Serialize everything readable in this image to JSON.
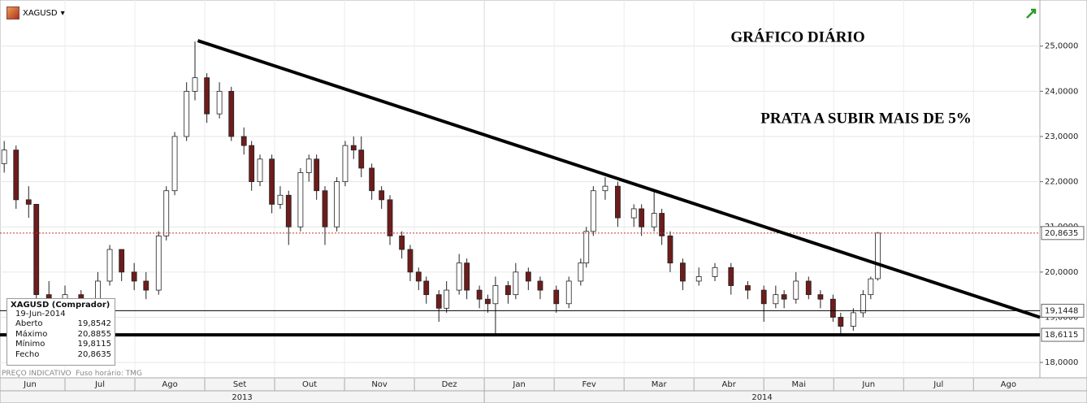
{
  "chart_data": {
    "type": "candlestick",
    "symbol": "XAGUSD",
    "annotations": [
      "GRÁFICO DIÁRIO",
      "PRATA A SUBIR MAIS DE 5%"
    ],
    "footer": [
      "PREÇO INDICATIVO",
      "Fuso horário: TMG"
    ],
    "info": {
      "title": "XAGUSD (Comprador)",
      "date": "19-Jun-2014",
      "rows": [
        [
          "Aberto",
          "19,8542"
        ],
        [
          "Máximo",
          "20,8855"
        ],
        [
          "Mínimo",
          "19,8115"
        ],
        [
          "Fecho",
          "20,8635"
        ]
      ]
    },
    "years": [
      "2013",
      "2014"
    ],
    "xlim": [
      0.07,
      14.95
    ],
    "xticks": [
      {
        "value": 0.5,
        "label": "Jun"
      },
      {
        "value": 1.5,
        "label": "Jul"
      },
      {
        "value": 2.5,
        "label": "Ago"
      },
      {
        "value": 3.5,
        "label": "Set"
      },
      {
        "value": 4.5,
        "label": "Out"
      },
      {
        "value": 5.5,
        "label": "Nov"
      },
      {
        "value": 6.5,
        "label": "Dez"
      },
      {
        "value": 7.5,
        "label": "Jan"
      },
      {
        "value": 8.5,
        "label": "Fev"
      },
      {
        "value": 9.5,
        "label": "Mar"
      },
      {
        "value": 10.5,
        "label": "Abr"
      },
      {
        "value": 11.5,
        "label": "Mai"
      },
      {
        "value": 12.5,
        "label": "Jun"
      },
      {
        "value": 13.5,
        "label": "Jul"
      },
      {
        "value": 14.5,
        "label": "Ago"
      }
    ],
    "ylim": [
      17.66,
      26.02
    ],
    "yticks": [
      {
        "value": 18,
        "label": "18,0000"
      },
      {
        "value": 19,
        "label": "19,0000"
      },
      {
        "value": 20,
        "label": "20,0000"
      },
      {
        "value": 21,
        "label": "21,0000"
      },
      {
        "value": 22,
        "label": "22,0000"
      },
      {
        "value": 23,
        "label": "23,0000"
      },
      {
        "value": 24,
        "label": "24,0000"
      },
      {
        "value": 25,
        "label": "25,0000"
      }
    ],
    "grid": true,
    "up_color": "#ffffff",
    "down_color": "#6e1c1c",
    "x": [
      0.13,
      0.3,
      0.48,
      0.59,
      0.77,
      1.0,
      1.23,
      1.47,
      1.64,
      1.81,
      1.99,
      2.16,
      2.34,
      2.45,
      2.57,
      2.74,
      2.86,
      3.03,
      3.21,
      3.38,
      3.56,
      3.67,
      3.79,
      3.96,
      4.08,
      4.2,
      4.37,
      4.49,
      4.6,
      4.72,
      4.89,
      5.01,
      5.13,
      5.24,
      5.39,
      5.53,
      5.65,
      5.82,
      5.94,
      6.06,
      6.17,
      6.35,
      6.46,
      6.64,
      6.75,
      6.93,
      7.05,
      7.16,
      7.34,
      7.45,
      7.63,
      7.8,
      8.03,
      8.21,
      8.38,
      8.46,
      8.56,
      8.73,
      8.91,
      9.14,
      9.25,
      9.43,
      9.54,
      9.66,
      9.84,
      10.07,
      10.3,
      10.53,
      10.77,
      11.0,
      11.17,
      11.29,
      11.46,
      11.64,
      11.81,
      11.99,
      12.1,
      12.28,
      12.42,
      12.53,
      12.63
    ],
    "open": [
      22.4,
      22.7,
      21.6,
      21.5,
      19.5,
      19.3,
      19.5,
      19.2,
      19.8,
      20.5,
      20.0,
      19.8,
      19.6,
      20.8,
      21.8,
      23.0,
      24.0,
      24.3,
      23.5,
      24.0,
      23.0,
      22.8,
      22.0,
      22.5,
      21.5,
      21.7,
      21.0,
      22.2,
      22.5,
      21.8,
      21.0,
      22.0,
      22.8,
      22.7,
      22.3,
      21.8,
      21.6,
      20.8,
      20.5,
      20.0,
      19.8,
      19.5,
      19.2,
      19.6,
      20.2,
      19.6,
      19.4,
      19.3,
      19.7,
      19.5,
      20.0,
      19.8,
      19.6,
      19.3,
      19.8,
      20.2,
      20.9,
      21.8,
      21.9,
      21.2,
      21.4,
      21.0,
      21.3,
      20.8,
      20.2,
      19.8,
      19.9,
      20.1,
      19.7,
      19.6,
      19.3,
      19.5,
      19.4,
      19.8,
      19.5,
      19.4,
      19.0,
      18.8,
      19.1,
      19.5,
      19.8542
    ],
    "high": [
      22.9,
      22.8,
      21.9,
      21.5,
      19.8,
      19.7,
      19.6,
      20.0,
      20.6,
      20.5,
      20.2,
      20.0,
      20.9,
      21.9,
      23.1,
      24.2,
      25.1,
      24.4,
      24.2,
      24.1,
      23.2,
      22.9,
      22.6,
      22.6,
      21.9,
      21.8,
      22.3,
      22.6,
      22.6,
      21.9,
      22.1,
      22.9,
      23.0,
      23.0,
      22.4,
      21.9,
      21.7,
      20.9,
      20.6,
      20.1,
      19.9,
      19.6,
      19.8,
      20.4,
      20.3,
      19.7,
      19.5,
      19.9,
      19.8,
      20.2,
      20.1,
      19.9,
      19.7,
      19.9,
      20.3,
      21.0,
      21.9,
      22.1,
      22.0,
      21.5,
      21.5,
      21.8,
      21.4,
      20.9,
      20.3,
      20.1,
      20.2,
      20.2,
      19.8,
      19.7,
      19.7,
      19.6,
      20.0,
      19.9,
      19.6,
      19.5,
      19.1,
      19.2,
      19.6,
      19.9,
      20.8855
    ],
    "low": [
      22.2,
      21.4,
      21.2,
      19.3,
      19.0,
      19.0,
      18.9,
      19.1,
      19.7,
      19.8,
      19.6,
      19.4,
      19.5,
      20.7,
      21.7,
      22.9,
      23.8,
      23.3,
      23.4,
      22.9,
      22.6,
      21.8,
      21.9,
      21.3,
      21.4,
      20.6,
      20.9,
      22.0,
      21.6,
      20.6,
      20.9,
      21.9,
      22.5,
      22.1,
      21.6,
      21.4,
      20.6,
      20.3,
      19.8,
      19.6,
      19.3,
      18.9,
      19.1,
      19.5,
      19.4,
      19.2,
      19.1,
      18.6,
      19.3,
      19.4,
      19.6,
      19.4,
      19.1,
      19.2,
      19.7,
      20.1,
      20.8,
      21.6,
      21.0,
      21.0,
      20.8,
      20.9,
      20.6,
      20.0,
      19.6,
      19.7,
      19.8,
      19.5,
      19.4,
      18.9,
      19.2,
      19.2,
      19.3,
      19.4,
      19.2,
      18.9,
      18.6,
      18.7,
      19.0,
      19.4,
      19.8115
    ],
    "close": [
      22.7,
      21.6,
      21.5,
      19.5,
      19.3,
      19.5,
      19.2,
      19.8,
      20.5,
      20.0,
      19.8,
      19.6,
      20.8,
      21.8,
      23.0,
      24.0,
      24.3,
      23.5,
      24.0,
      23.0,
      22.8,
      22.0,
      22.5,
      21.5,
      21.7,
      21.0,
      22.2,
      22.5,
      21.8,
      21.0,
      22.0,
      22.8,
      22.7,
      22.3,
      21.8,
      21.6,
      20.8,
      20.5,
      20.0,
      19.8,
      19.5,
      19.2,
      19.6,
      20.2,
      19.6,
      19.4,
      19.3,
      19.7,
      19.5,
      20.0,
      19.8,
      19.6,
      19.3,
      19.8,
      20.2,
      20.9,
      21.8,
      21.9,
      21.2,
      21.4,
      21.0,
      21.3,
      20.8,
      20.2,
      19.8,
      19.9,
      20.1,
      19.7,
      19.6,
      19.3,
      19.5,
      19.4,
      19.8,
      19.5,
      19.4,
      19.0,
      18.8,
      19.1,
      19.5,
      19.85,
      20.8635
    ],
    "trendline": {
      "x": [
        2.9,
        14.95
      ],
      "y": [
        25.12,
        19.0
      ]
    },
    "levels": [
      {
        "value": 20.8635,
        "label": "20,8635",
        "style": "dotted",
        "color": "#c0392b"
      },
      {
        "value": 19.1448,
        "label": "19,1448",
        "style": "thin",
        "color": "#000000"
      },
      {
        "value": 18.6115,
        "label": "18,6115",
        "style": "thick",
        "color": "#000000"
      }
    ]
  }
}
